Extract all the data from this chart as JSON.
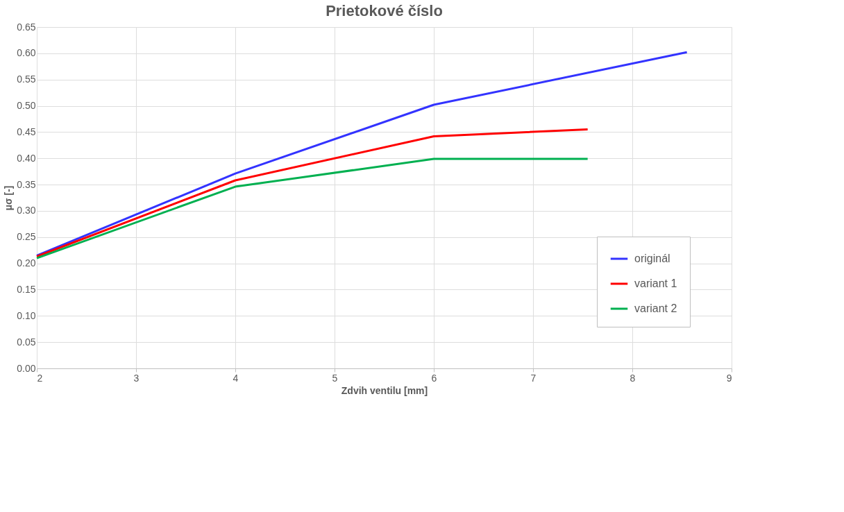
{
  "chart_data": {
    "type": "line",
    "title": "Prietokové číslo",
    "xlabel": "Zdvih ventilu [mm]",
    "ylabel": "μσ [-]",
    "series": [
      {
        "name": "originál",
        "color": "#3333ff",
        "x": [
          2,
          4,
          6,
          8.55
        ],
        "values": [
          0.215,
          0.371,
          0.502,
          0.602
        ]
      },
      {
        "name": "variant 1",
        "color": "#ff0000",
        "x": [
          2,
          4,
          6,
          7.55
        ],
        "values": [
          0.213,
          0.358,
          0.442,
          0.455
        ]
      },
      {
        "name": "variant 2",
        "color": "#00b050",
        "x": [
          2,
          4,
          6,
          7.55
        ],
        "values": [
          0.21,
          0.346,
          0.399,
          0.399
        ]
      }
    ],
    "xlim": [
      2,
      9
    ],
    "xticks": [
      2,
      3,
      4,
      5,
      6,
      7,
      8,
      9
    ],
    "ylim": [
      0,
      0.65
    ],
    "yticks": [
      {
        "value": 0,
        "label": "0.00"
      },
      {
        "value": 0.05,
        "label": "0.05"
      },
      {
        "value": 0.1,
        "label": "0.10"
      },
      {
        "value": 0.15,
        "label": "0.15"
      },
      {
        "value": 0.2,
        "label": "0.20"
      },
      {
        "value": 0.25,
        "label": "0.25"
      },
      {
        "value": 0.3,
        "label": "0.30"
      },
      {
        "value": 0.35,
        "label": "0.35"
      },
      {
        "value": 0.4,
        "label": "0.40"
      },
      {
        "value": 0.45,
        "label": "0.45"
      },
      {
        "value": 0.5,
        "label": "0.50"
      },
      {
        "value": 0.55,
        "label": "0.55"
      },
      {
        "value": 0.6,
        "label": "0.60"
      },
      {
        "value": 0.65,
        "label": "0.65"
      }
    ],
    "grid": true,
    "legend": "bottom right",
    "marker": "none",
    "line_style": "solid"
  }
}
